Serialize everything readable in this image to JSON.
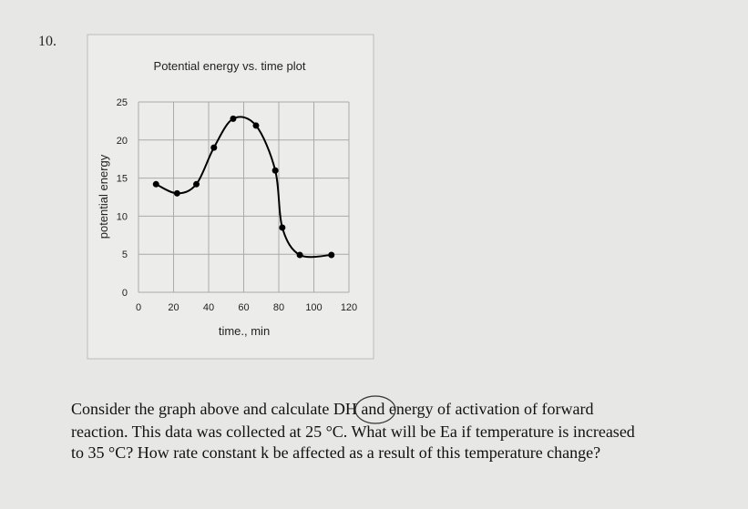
{
  "question_number": "10.",
  "chart_data": {
    "type": "line",
    "title": "Potential energy vs. time plot",
    "x_label": "time., min",
    "y_label": "potential energy",
    "x": [
      10,
      22,
      33,
      43,
      54,
      67,
      78,
      82,
      92,
      110
    ],
    "series": [
      {
        "color": "#000000",
        "values": [
          14.2,
          13,
          14.2,
          19,
          22.8,
          21.9,
          16,
          8.5,
          4.9,
          4.9
        ]
      }
    ],
    "xlim": [
      0,
      120
    ],
    "xticks": [
      0,
      20,
      40,
      60,
      80,
      100,
      120
    ],
    "ylim": [
      0,
      25
    ],
    "yticks": [
      0,
      5,
      10,
      15,
      20,
      25
    ],
    "grid": true
  },
  "question_text": [
    "Consider the graph above and calculate DH and energy of activation of forward",
    "reaction. This data was collected at 25 °C.  What will be Ea if temperature is increased",
    "to 35 °C? How rate constant k be affected as a result of this temperature change?"
  ]
}
